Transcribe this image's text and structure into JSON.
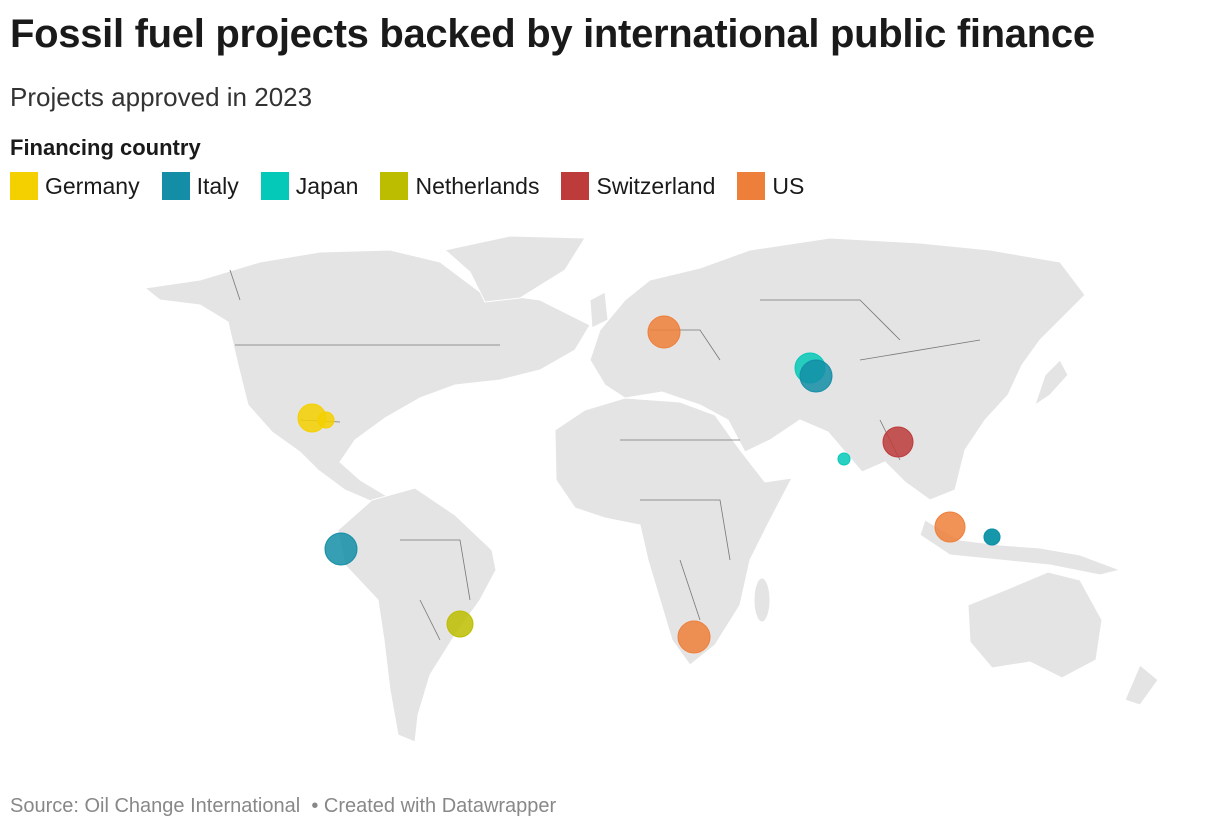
{
  "header": {
    "title": "Fossil fuel projects backed by international public finance",
    "subtitle": "Projects approved in 2023"
  },
  "legend": {
    "title": "Financing country",
    "items": [
      {
        "name": "Germany",
        "color": "#f5d000"
      },
      {
        "name": "Italy",
        "color": "#138ea6"
      },
      {
        "name": "Japan",
        "color": "#05c9b8"
      },
      {
        "name": "Netherlands",
        "color": "#bdbd00"
      },
      {
        "name": "Switzerland",
        "color": "#bd3b3b"
      },
      {
        "name": "US",
        "color": "#ee7f3a"
      }
    ]
  },
  "footer": {
    "source": "Source: Oil Change International",
    "credit": "• Created with Datawrapper"
  }
}
